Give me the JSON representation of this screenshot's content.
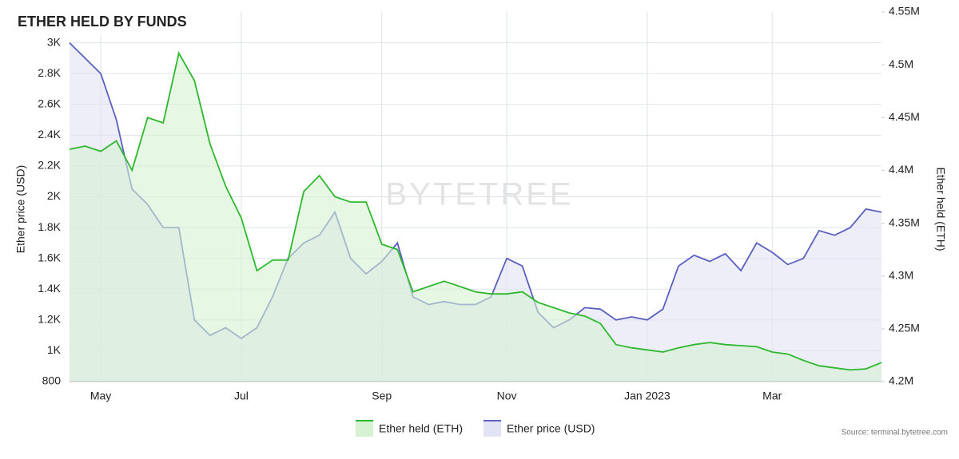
{
  "chart_data": {
    "type": "dual-area-line",
    "title": "ETHER HELD BY FUNDS",
    "y_label": "Ether price (USD)",
    "y2_label": "Ether held (ETH)",
    "watermark": "BYTETREE",
    "source": "Source: terminal.bytetree.com",
    "grid": true,
    "categories": [
      null,
      null,
      "May",
      null,
      null,
      null,
      null,
      null,
      null,
      null,
      null,
      "Jul",
      null,
      null,
      null,
      null,
      null,
      null,
      null,
      null,
      "Sep",
      null,
      null,
      null,
      null,
      null,
      null,
      null,
      "Nov",
      null,
      null,
      null,
      null,
      null,
      null,
      null,
      null,
      "Jan 2023",
      null,
      null,
      null,
      null,
      null,
      null,
      null,
      "Mar",
      null,
      null,
      null,
      null,
      null,
      null,
      null
    ],
    "ylim": [
      800,
      3200
    ],
    "yticks": [
      800,
      {
        "value": 1000,
        "label": "1K"
      },
      {
        "value": 1200,
        "label": "1.2K"
      },
      {
        "value": 1400,
        "label": "1.4K"
      },
      {
        "value": 1600,
        "label": "1.6K"
      },
      {
        "value": 1800,
        "label": "1.8K"
      },
      {
        "value": 2000,
        "label": "2K"
      },
      {
        "value": 2200,
        "label": "2.2K"
      },
      {
        "value": 2400,
        "label": "2.4K"
      },
      {
        "value": 2600,
        "label": "2.6K"
      },
      {
        "value": 2800,
        "label": "2.8K"
      },
      {
        "value": 3000,
        "label": "3K"
      }
    ],
    "y2lim": [
      4200000,
      4550000
    ],
    "y2ticks": [
      {
        "value": 4200000,
        "label": "4.2M"
      },
      {
        "value": 4250000,
        "label": "4.25M"
      },
      {
        "value": 4300000,
        "label": "4.3M"
      },
      {
        "value": 4350000,
        "label": "4.35M"
      },
      {
        "value": 4400000,
        "label": "4.4M"
      },
      {
        "value": 4450000,
        "label": "4.45M"
      },
      {
        "value": 4500000,
        "label": "4.5M"
      },
      {
        "value": 4550000,
        "label": "4.55M"
      }
    ],
    "series": [
      {
        "name": "Ether held (ETH)",
        "axis": "y2",
        "color": "#2db82d",
        "fill": "#d6f2d2",
        "values": [
          4420000,
          4423000,
          4418000,
          4428000,
          4400000,
          4450000,
          4445000,
          4511000,
          4485000,
          4425000,
          4385000,
          4355000,
          4305000,
          4315000,
          4315000,
          4380000,
          4395000,
          4375000,
          4370000,
          4370000,
          4330000,
          4325000,
          4285000,
          4290000,
          4295000,
          4290000,
          4285000,
          4283000,
          4283000,
          4285000,
          4275000,
          4270000,
          4265000,
          4262000,
          4255000,
          4235000,
          4232000,
          4230000,
          4228000,
          4232000,
          4235000,
          4237000,
          4235000,
          4234000,
          4233000,
          4228000,
          4226000,
          4220000,
          4215000,
          4213000,
          4211000,
          4212000,
          4218000
        ]
      },
      {
        "name": "Ether price (USD)",
        "axis": "y",
        "color": "#5a5fc0",
        "fill": "#e2e3f5",
        "values": [
          3000,
          2900,
          2800,
          2500,
          2050,
          1950,
          1800,
          1800,
          1200,
          1100,
          1150,
          1080,
          1150,
          1350,
          1600,
          1700,
          1750,
          1900,
          1600,
          1500,
          1580,
          1700,
          1350,
          1300,
          1320,
          1300,
          1300,
          1350,
          1600,
          1550,
          1250,
          1150,
          1200,
          1280,
          1270,
          1200,
          1220,
          1200,
          1270,
          1550,
          1620,
          1580,
          1630,
          1520,
          1700,
          1640,
          1560,
          1600,
          1780,
          1750,
          1800,
          1920,
          1900
        ]
      }
    ]
  }
}
